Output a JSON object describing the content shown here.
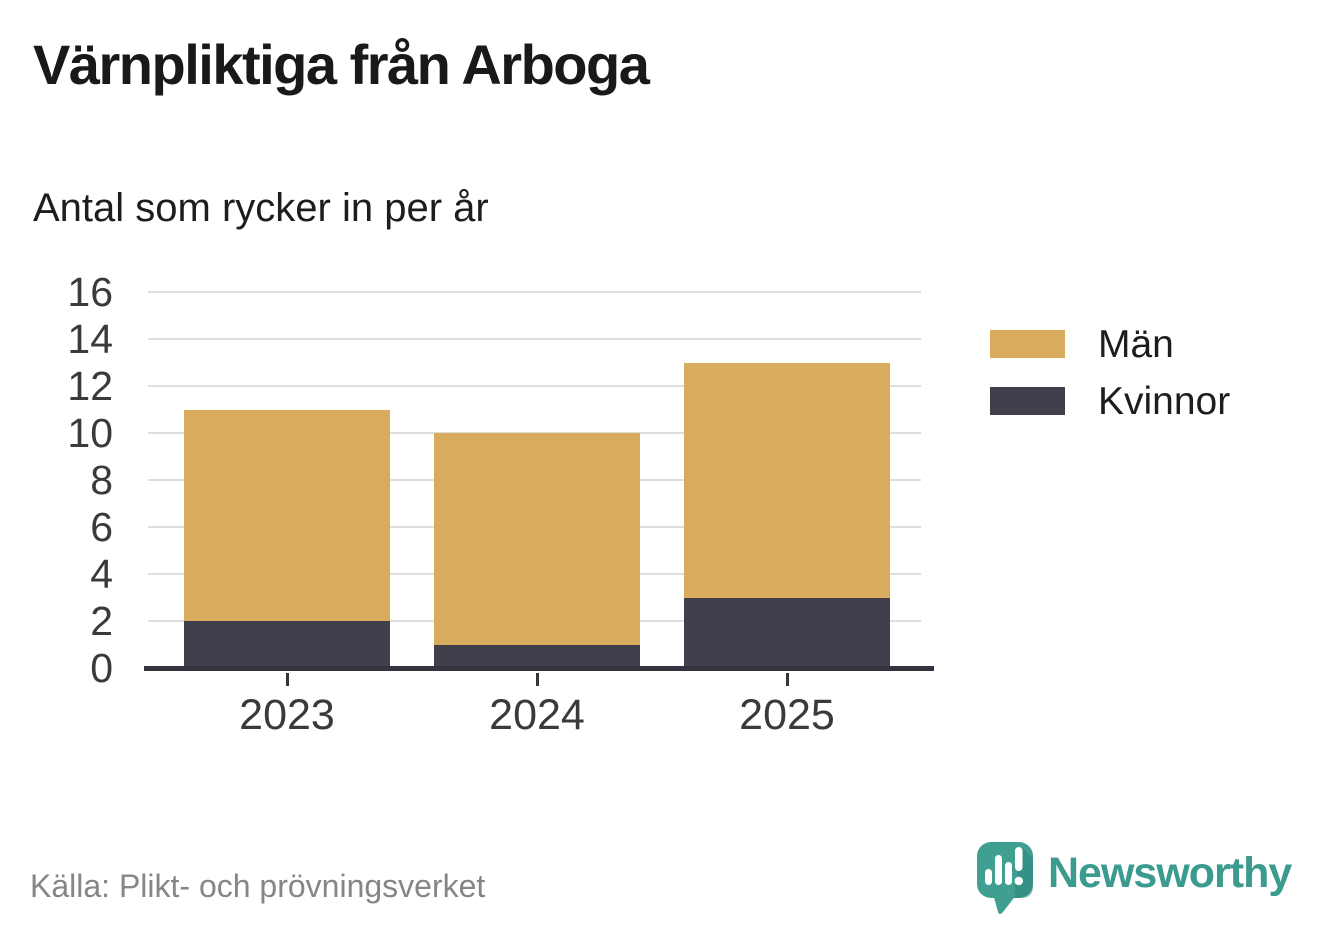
{
  "header": {
    "title": "Värnpliktiga från Arboga",
    "subtitle": "Antal som rycker in per år"
  },
  "chart_data": {
    "type": "bar",
    "stacked": true,
    "title": "Värnpliktiga från Arboga",
    "subtitle": "Antal som rycker in per år",
    "categories": [
      "2023",
      "2024",
      "2025"
    ],
    "series": [
      {
        "name": "Män",
        "color": "#d9ab5c",
        "values": [
          9,
          9,
          10
        ]
      },
      {
        "name": "Kvinnor",
        "color": "#423f4d",
        "values": [
          2,
          1,
          3
        ]
      }
    ],
    "stack_order_bottom_to_top": [
      "Kvinnor",
      "Män"
    ],
    "totals": [
      11,
      10,
      13
    ],
    "xlabel": "",
    "ylabel": "",
    "ylim": [
      0,
      16
    ],
    "yticks": [
      0,
      2,
      4,
      6,
      8,
      10,
      12,
      14,
      16
    ],
    "grid": "horizontal",
    "legend_position": "right",
    "axis_color": "#35333e",
    "gridline_color": "#dedede",
    "tick_label_color": "#3a3a3a"
  },
  "footer": {
    "source": "Källa: Plikt- och prövningsverket",
    "brand": "Newsworthy",
    "brand_color": "#3a9b8e",
    "logo_icon": "newsworthy-speech-bubble-chart-icon"
  }
}
